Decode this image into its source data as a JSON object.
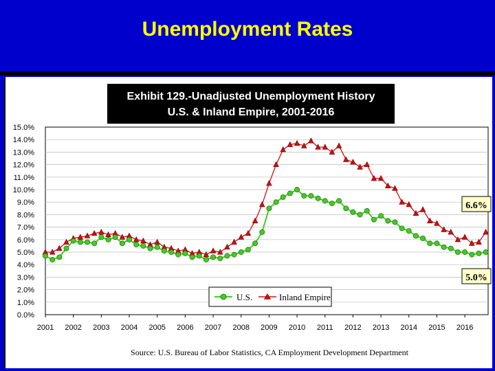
{
  "slide": {
    "title": "Unemployment Rates"
  },
  "colors": {
    "background": "#0000CC",
    "title": "#FFFF00",
    "us": "#44CC22",
    "ie": "#CC1111",
    "banner": "#000000"
  },
  "chart_data": {
    "type": "line",
    "title": "Exhibit 129.-Unadjusted Unemployment History",
    "subtitle": "U.S. & Inland Empire, 2001-2016",
    "xlabel": "",
    "ylabel": "",
    "xlim": [
      2001,
      2016.833
    ],
    "ylim": [
      0,
      15
    ],
    "x_ticks": [
      "2001",
      "2002",
      "2003",
      "2004",
      "2005",
      "2006",
      "2007",
      "2008",
      "2009",
      "2010",
      "2011",
      "2012",
      "2013",
      "2014",
      "2015",
      "2016"
    ],
    "y_ticks": [
      "0.0%",
      "1.0%",
      "2.0%",
      "3.0%",
      "4.0%",
      "5.0%",
      "6.0%",
      "7.0%",
      "8.0%",
      "9.0%",
      "10.0%",
      "11.0%",
      "12.0%",
      "13.0%",
      "14.0%",
      "15.0%"
    ],
    "grid": "horizontal",
    "legend_position": "bottom-center",
    "annotations": [
      "6.6%",
      "5.0%"
    ],
    "source": "Source: U.S. Bureau of Labor Statistics, CA Employment Development Department",
    "series": [
      {
        "name": "U.S.",
        "marker": "circle",
        "x": [
          2001,
          2001.25,
          2001.5,
          2001.75,
          2002,
          2002.25,
          2002.5,
          2002.75,
          2003,
          2003.25,
          2003.5,
          2003.75,
          2004,
          2004.25,
          2004.5,
          2004.75,
          2005,
          2005.25,
          2005.5,
          2005.75,
          2006,
          2006.25,
          2006.5,
          2006.75,
          2007,
          2007.25,
          2007.5,
          2007.75,
          2008,
          2008.25,
          2008.5,
          2008.75,
          2009,
          2009.25,
          2009.5,
          2009.75,
          2010,
          2010.25,
          2010.5,
          2010.75,
          2011,
          2011.25,
          2011.5,
          2011.75,
          2012,
          2012.25,
          2012.5,
          2012.75,
          2013,
          2013.25,
          2013.5,
          2013.75,
          2014,
          2014.25,
          2014.5,
          2014.75,
          2015,
          2015.25,
          2015.5,
          2015.75,
          2016,
          2016.25,
          2016.5,
          2016.75
        ],
        "values": [
          4.7,
          4.4,
          4.6,
          5.3,
          5.9,
          5.8,
          5.8,
          5.7,
          6.2,
          6.0,
          6.2,
          5.7,
          6.0,
          5.6,
          5.5,
          5.3,
          5.4,
          5.1,
          5.0,
          4.8,
          4.9,
          4.6,
          4.7,
          4.4,
          4.6,
          4.5,
          4.7,
          4.8,
          5.0,
          5.2,
          5.7,
          6.6,
          8.5,
          9.0,
          9.4,
          9.7,
          10.0,
          9.5,
          9.5,
          9.3,
          9.1,
          8.9,
          9.1,
          8.5,
          8.2,
          8.0,
          8.3,
          7.6,
          7.9,
          7.5,
          7.4,
          6.9,
          6.7,
          6.3,
          6.1,
          5.7,
          5.7,
          5.4,
          5.3,
          5.0,
          5.0,
          4.8,
          4.9,
          5.0
        ]
      },
      {
        "name": "Inland Empire",
        "marker": "triangle",
        "x": [
          2001,
          2001.25,
          2001.5,
          2001.75,
          2002,
          2002.25,
          2002.5,
          2002.75,
          2003,
          2003.25,
          2003.5,
          2003.75,
          2004,
          2004.25,
          2004.5,
          2004.75,
          2005,
          2005.25,
          2005.5,
          2005.75,
          2006,
          2006.25,
          2006.5,
          2006.75,
          2007,
          2007.25,
          2007.5,
          2007.75,
          2008,
          2008.25,
          2008.5,
          2008.75,
          2009,
          2009.25,
          2009.5,
          2009.75,
          2010,
          2010.25,
          2010.5,
          2010.75,
          2011,
          2011.25,
          2011.5,
          2011.75,
          2012,
          2012.25,
          2012.5,
          2012.75,
          2013,
          2013.25,
          2013.5,
          2013.75,
          2014,
          2014.25,
          2014.5,
          2014.75,
          2015,
          2015.25,
          2015.5,
          2015.75,
          2016,
          2016.25,
          2016.5,
          2016.75
        ],
        "values": [
          5.0,
          5.0,
          5.3,
          5.8,
          6.1,
          6.2,
          6.3,
          6.5,
          6.6,
          6.4,
          6.5,
          6.2,
          6.3,
          6.0,
          5.9,
          5.6,
          5.8,
          5.4,
          5.3,
          5.1,
          5.2,
          4.9,
          5.0,
          4.8,
          5.1,
          5.0,
          5.4,
          5.8,
          6.2,
          6.5,
          7.5,
          8.8,
          10.5,
          12.0,
          13.2,
          13.6,
          13.7,
          13.5,
          13.9,
          13.4,
          13.4,
          13.0,
          13.5,
          12.4,
          12.2,
          11.8,
          12.0,
          10.9,
          10.9,
          10.3,
          10.1,
          9.0,
          8.8,
          8.1,
          8.4,
          7.5,
          7.3,
          6.8,
          6.6,
          6.0,
          6.2,
          5.7,
          5.8,
          6.6
        ]
      }
    ]
  }
}
